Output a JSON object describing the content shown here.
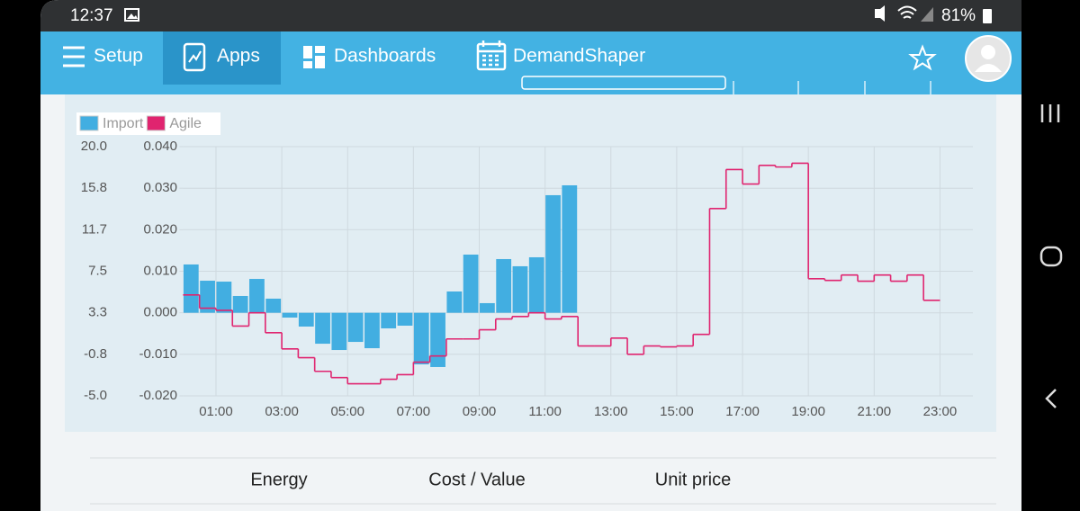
{
  "status_bar": {
    "time": "12:37",
    "battery": "81%"
  },
  "nav": {
    "items": [
      "Setup",
      "Apps",
      "Dashboards",
      "DemandShaper"
    ]
  },
  "chart_data": {
    "type": "combo",
    "legend": "top-left",
    "grid": true,
    "xlim": [
      0,
      24
    ],
    "xticks": [
      {
        "value": 1,
        "label": "01:00"
      },
      {
        "value": 3,
        "label": "03:00"
      },
      {
        "value": 5,
        "label": "05:00"
      },
      {
        "value": 7,
        "label": "07:00"
      },
      {
        "value": 9,
        "label": "09:00"
      },
      {
        "value": 11,
        "label": "11:00"
      },
      {
        "value": 13,
        "label": "13:00"
      },
      {
        "value": 15,
        "label": "15:00"
      },
      {
        "value": 17,
        "label": "17:00"
      },
      {
        "value": 19,
        "label": "19:00"
      },
      {
        "value": 21,
        "label": "21:00"
      },
      {
        "value": 23,
        "label": "23:00"
      }
    ],
    "ylim": [
      -5,
      20
    ],
    "yticks": [
      {
        "value": 20,
        "label": "20.0"
      },
      {
        "value": 15.83,
        "label": "15.8"
      },
      {
        "value": 11.67,
        "label": "11.7"
      },
      7.5,
      {
        "value": 3.33,
        "label": "3.3"
      },
      {
        "value": -0.83,
        "label": "-0.8"
      },
      {
        "value": -5,
        "label": "-5.0"
      }
    ],
    "y2lim": [
      -0.02,
      0.04
    ],
    "y2ticks": [
      {
        "value": 0.04,
        "label": "0.040"
      },
      {
        "value": 0.03,
        "label": "0.030"
      },
      {
        "value": 0.02,
        "label": "0.020"
      },
      {
        "value": 0.01,
        "label": "0.010"
      },
      {
        "value": 0,
        "label": "0.000"
      },
      {
        "value": -0.01,
        "label": "-0.010"
      },
      {
        "value": -0.02,
        "label": "-0.020"
      }
    ],
    "series": [
      {
        "name": "Import",
        "type": "bar",
        "color": "#42aee1",
        "x": [
          0,
          0.5,
          1,
          1.5,
          2,
          2.5,
          3,
          3.5,
          4,
          4.5,
          5,
          5.5,
          6,
          6.5,
          7,
          7.5,
          8,
          8.5,
          9,
          9.5,
          10,
          10.5,
          11,
          11.5
        ],
        "values": [
          8.18,
          6.55,
          6.46,
          5.02,
          6.73,
          4.75,
          2.85,
          1.95,
          0.23,
          -0.4,
          0.41,
          -0.22,
          1.77,
          2.04,
          -1.84,
          -2.11,
          5.47,
          9.17,
          4.3,
          8.72,
          8.0,
          8.9,
          15.13,
          16.12
        ]
      },
      {
        "name": "Agile",
        "type": "line",
        "axis": "y2",
        "color": "#e0246f",
        "x": [
          0,
          0.5,
          1,
          1.5,
          2,
          2.5,
          3,
          3.5,
          4,
          4.5,
          5,
          5.5,
          6,
          6.5,
          7,
          7.5,
          8,
          8.5,
          9,
          9.5,
          10,
          10.5,
          11,
          11.5,
          12,
          12.5,
          13,
          13.5,
          14,
          14.5,
          15,
          15.5,
          16,
          16.5,
          17,
          17.5,
          18,
          18.5,
          19,
          19.5,
          20,
          20.5,
          21,
          21.5,
          22,
          22.5
        ],
        "values": [
          0.0043,
          0.0011,
          0.0006,
          -0.0032,
          0.0,
          -0.0048,
          -0.0087,
          -0.0108,
          -0.0141,
          -0.0156,
          -0.0171,
          -0.0171,
          -0.016,
          -0.0149,
          -0.0119,
          -0.0104,
          -0.0063,
          -0.0063,
          -0.0041,
          -0.0015,
          -0.0009,
          0.0,
          -0.0015,
          -0.0009,
          -0.008,
          -0.008,
          -0.0061,
          -0.01,
          -0.008,
          -0.0082,
          -0.008,
          -0.0052,
          0.0251,
          0.0345,
          0.031,
          0.0355,
          0.0351,
          0.036,
          0.0082,
          0.0078,
          0.0091,
          0.0076,
          0.0091,
          0.0076,
          0.0091,
          0.003
        ]
      }
    ]
  },
  "table": {
    "headers": [
      "Energy",
      "Cost / Value",
      "Unit price"
    ]
  }
}
